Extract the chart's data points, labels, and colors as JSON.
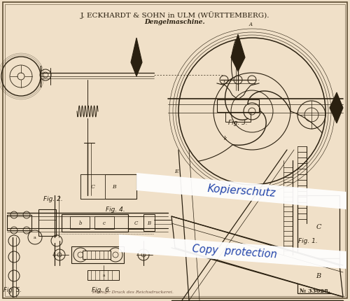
{
  "bg_color": "#f0e0c8",
  "line_color": "#2a2010",
  "border_color": "#5a4a30",
  "title_line1": "J. ECKHARDT & SOHN in ULM (WÜRTTEMBERG).",
  "title_line2": "Dengelmaschine.",
  "bottom_text": "Photogr. Druck des Reichsdruckerei.",
  "patent_number": "№ 33628.",
  "watermark1": "Kopierschutz",
  "watermark2": "Copy  protection",
  "wm_color": "#2244aa"
}
